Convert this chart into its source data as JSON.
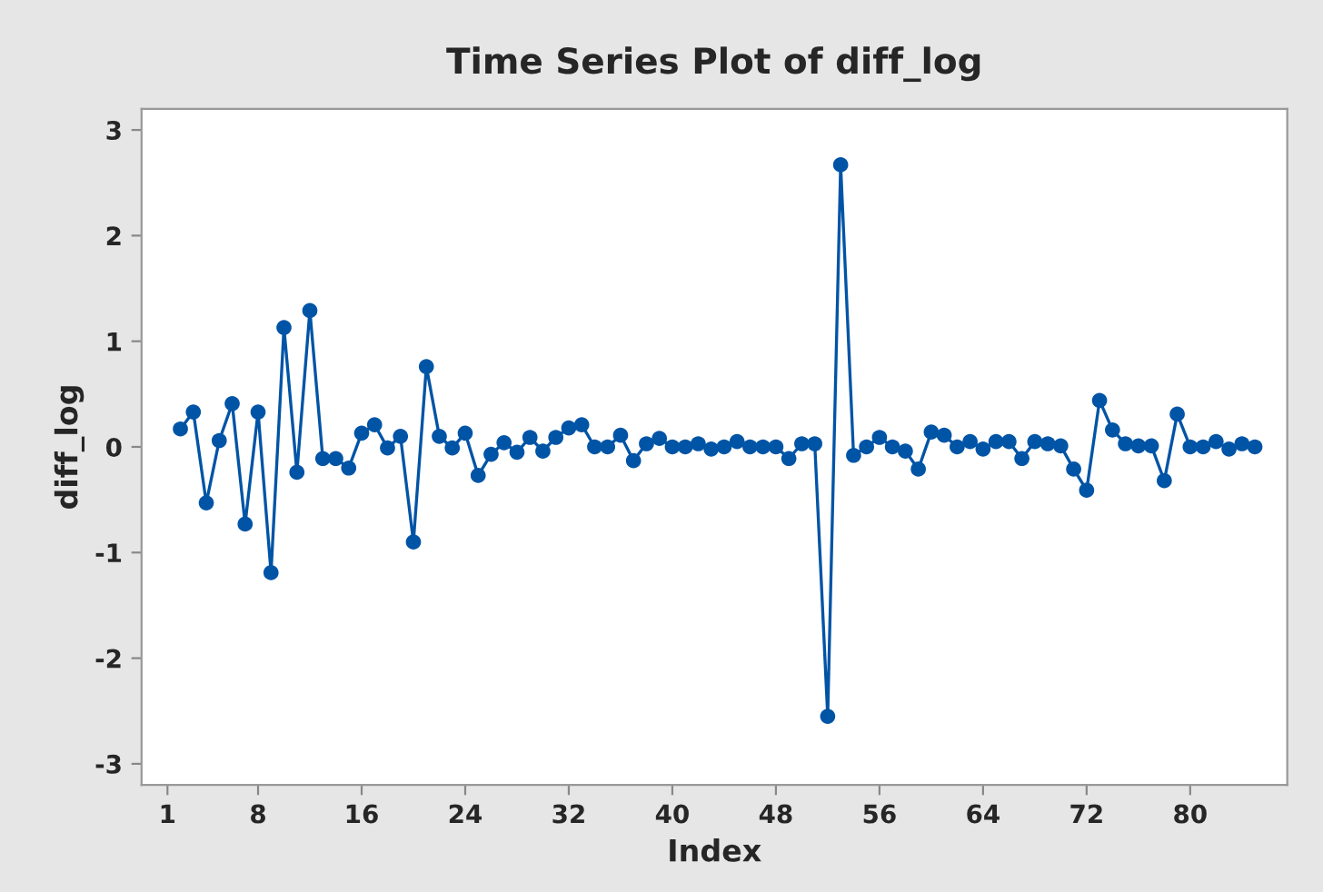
{
  "chart_data": {
    "type": "line",
    "title": "Time Series Plot of diff_log",
    "xlabel": "Index",
    "ylabel": "diff_log",
    "x": [
      2,
      3,
      4,
      5,
      6,
      7,
      8,
      9,
      10,
      11,
      12,
      13,
      14,
      15,
      16,
      17,
      18,
      19,
      20,
      21,
      22,
      23,
      24,
      25,
      26,
      27,
      28,
      29,
      30,
      31,
      32,
      33,
      34,
      35,
      36,
      37,
      38,
      39,
      40,
      41,
      42,
      43,
      44,
      45,
      46,
      47,
      48,
      49,
      50,
      51,
      52,
      53,
      54,
      55,
      56,
      57,
      58,
      59,
      60,
      61,
      62,
      63,
      64,
      65,
      66,
      67,
      68,
      69,
      70,
      71,
      72,
      73,
      74,
      75,
      76,
      77,
      78,
      79,
      80,
      81,
      82,
      83,
      84,
      85
    ],
    "series": [
      {
        "color": "#0054a6",
        "values": [
          0.17,
          0.33,
          -0.53,
          0.06,
          0.41,
          -0.73,
          0.33,
          -1.19,
          1.13,
          -0.24,
          1.29,
          -0.11,
          -0.11,
          -0.2,
          0.13,
          0.21,
          -0.01,
          0.1,
          -0.9,
          0.76,
          0.1,
          -0.01,
          0.13,
          -0.27,
          -0.07,
          0.04,
          -0.05,
          0.09,
          -0.04,
          0.09,
          0.18,
          0.21,
          0.0,
          0.0,
          0.11,
          -0.13,
          0.03,
          0.08,
          0.0,
          0.0,
          0.03,
          -0.02,
          0.0,
          0.05,
          0.0,
          0.0,
          0.0,
          -0.11,
          0.03,
          0.03,
          -2.55,
          2.67,
          -0.08,
          0.0,
          0.09,
          0.0,
          -0.04,
          -0.21,
          0.14,
          0.11,
          0.0,
          0.05,
          -0.02,
          0.05,
          0.05,
          -0.11,
          0.05,
          0.03,
          0.01,
          -0.21,
          -0.41,
          0.44,
          0.16,
          0.03,
          0.01,
          0.01,
          -0.32,
          0.31,
          0.0,
          0.0,
          0.05,
          -0.02,
          0.03,
          0.0
        ]
      }
    ],
    "xlim": [
      -1,
      87.5
    ],
    "xticks": [
      1,
      8,
      16,
      24,
      32,
      40,
      48,
      56,
      64,
      72,
      80
    ],
    "ylim": [
      -3.2,
      3.2
    ],
    "yticks": [
      -3,
      -2,
      -1,
      0,
      1,
      2,
      3
    ],
    "marker": "circle",
    "line_style": "solid",
    "grid": false,
    "legend": false
  }
}
